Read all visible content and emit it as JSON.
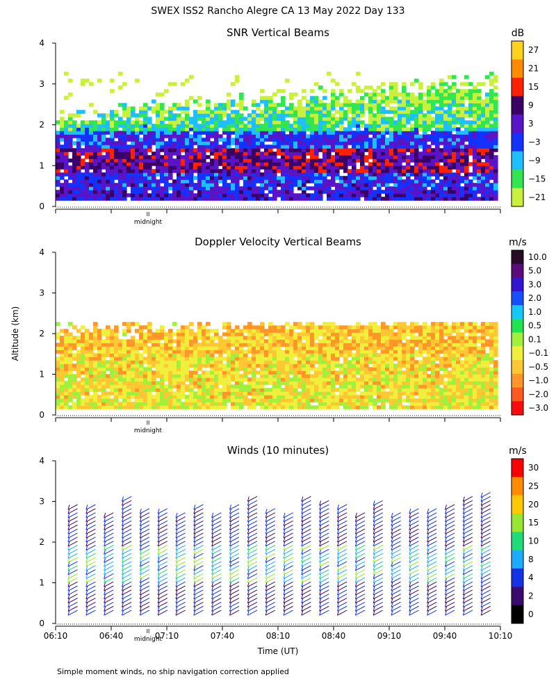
{
  "title": "SWEX ISS2 Rancho Alegre CA  13 May 2022 Day 133",
  "footnote": "Simple moment winds, no ship navigation correction applied",
  "shared_ylabel": "Altitude (km)",
  "midnight_label": "midnight",
  "midnight_marker": "II",
  "chart_data": [
    {
      "type": "heatmap",
      "title": "SNR Vertical Beams",
      "colorbar_unit": "dB",
      "ylim": [
        0,
        4
      ],
      "yticks": [
        0,
        1,
        2,
        3,
        4
      ],
      "xlim": [
        "06:10",
        "10:10"
      ],
      "colorbar_labels": [
        "27",
        "21",
        "15",
        "9",
        "3",
        "−3",
        "−9",
        "−15",
        "−21"
      ],
      "colors": [
        "#ffd21e",
        "#ff8c00",
        "#ff2000",
        "#3a0066",
        "#5a14c8",
        "#1432ff",
        "#1ebeff",
        "#32e650",
        "#c8f03c"
      ],
      "data_coverage_km": [
        0.15,
        3.3
      ]
    },
    {
      "type": "heatmap",
      "title": "Doppler Velocity Vertical Beams",
      "colorbar_unit": "m/s",
      "ylim": [
        0,
        4
      ],
      "yticks": [
        0,
        1,
        2,
        3,
        4
      ],
      "xlim": [
        "06:10",
        "10:10"
      ],
      "colorbar_labels": [
        "10.0",
        "5.0",
        "3.0",
        "2.0",
        "1.0",
        "0.5",
        "0.1",
        "−0.1",
        "−0.5",
        "−1.0",
        "−2.0",
        "−3.0"
      ],
      "colors": [
        "#2a0a2a",
        "#5a0a7a",
        "#3214d2",
        "#1450ff",
        "#14c8ff",
        "#1ee650",
        "#a0f03c",
        "#f0f03c",
        "#ffc832",
        "#ff9628",
        "#ff5a1e",
        "#ff0a0a"
      ],
      "data_coverage_km": [
        0.15,
        2.3
      ]
    },
    {
      "type": "wind_barbs",
      "title": "Winds (10 minutes)",
      "colorbar_unit": "m/s",
      "ylim": [
        0,
        4
      ],
      "yticks": [
        0,
        1,
        2,
        3,
        4
      ],
      "xlabel": "Time (UT)",
      "x_tick_labels": [
        "06:10",
        "06:40",
        "07:10",
        "07:40",
        "08:10",
        "08:40",
        "09:10",
        "09:40",
        "10:10"
      ],
      "colorbar_labels": [
        "30",
        "25",
        "20",
        "15",
        "10",
        "8",
        "4",
        "2",
        "0"
      ],
      "colors": [
        "#ff0000",
        "#ff8c00",
        "#ffc800",
        "#96e632",
        "#1edc78",
        "#1eaaff",
        "#1432e6",
        "#3c0a6e",
        "#000000"
      ],
      "profile_count": 24,
      "levels_km": [
        0.2,
        2.2
      ]
    }
  ]
}
